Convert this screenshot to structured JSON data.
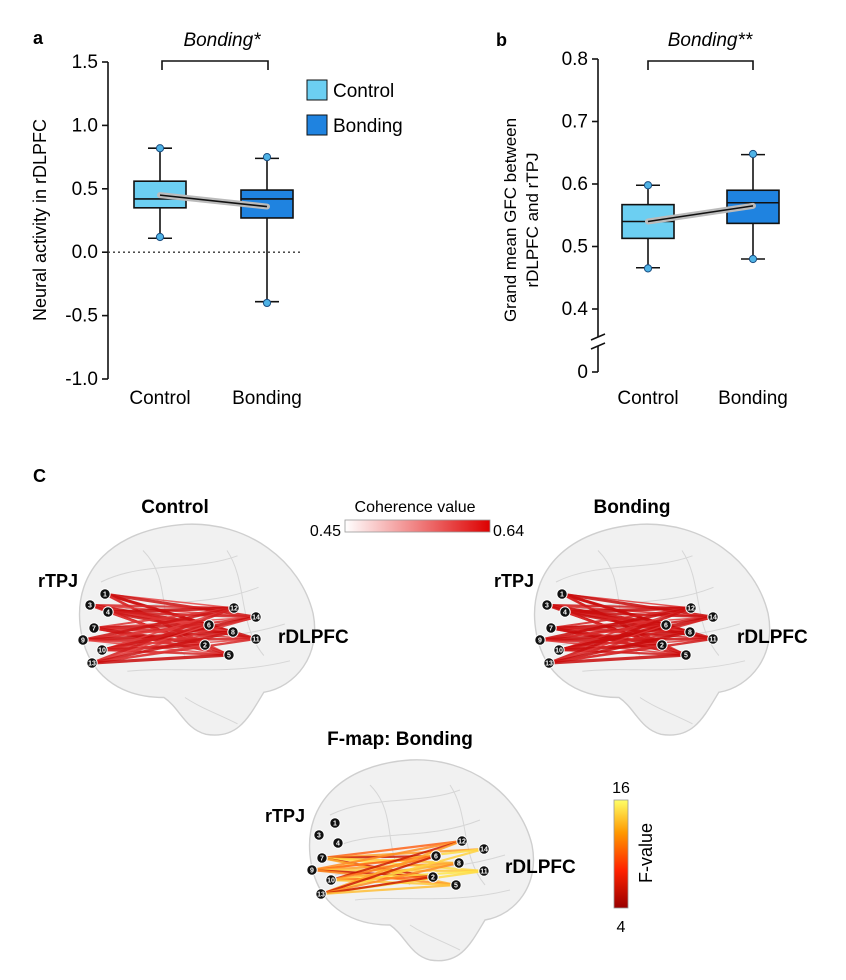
{
  "panel_a": {
    "letter": "a",
    "significance": "Bonding*",
    "legend": [
      "Control",
      "Bonding"
    ],
    "colors": {
      "control": "#6ccff2",
      "bonding": "#1f83e0"
    },
    "chart_data": {
      "type": "box",
      "categories": [
        "Control",
        "Bonding"
      ],
      "ylabel": "Neural activity in rDLPFC",
      "ylim": [
        -1.0,
        1.5
      ],
      "yticks": [
        "-1.0",
        "-0.5",
        "0.0",
        "0.5",
        "1.0",
        "1.5"
      ],
      "reference_line": 0.0,
      "boxes": [
        {
          "name": "Control",
          "min": 0.11,
          "q1": 0.35,
          "median": 0.42,
          "q3": 0.56,
          "max": 0.82,
          "mean": 0.45,
          "outliers": [
            0.82,
            0.12
          ]
        },
        {
          "name": "Bonding",
          "min": -0.39,
          "q1": 0.27,
          "median": 0.42,
          "q3": 0.49,
          "max": 0.74,
          "mean": 0.36,
          "outliers": [
            0.75,
            -0.4
          ]
        }
      ]
    }
  },
  "panel_b": {
    "letter": "b",
    "significance": "Bonding**",
    "chart_data": {
      "type": "box",
      "categories": [
        "Control",
        "Bonding"
      ],
      "ylabel_lines": [
        "Grand mean GFC between",
        "rDLPFC and rTPJ"
      ],
      "ylim": [
        0.35,
        0.8
      ],
      "yticks": [
        "0",
        "0.4",
        "0.5",
        "0.6",
        "0.7",
        "0.8"
      ],
      "axis_break": true,
      "boxes": [
        {
          "name": "Control",
          "min": 0.466,
          "q1": 0.513,
          "median": 0.54,
          "q3": 0.567,
          "max": 0.598,
          "mean": 0.54,
          "outliers": [
            0.598,
            0.465
          ]
        },
        {
          "name": "Bonding",
          "min": 0.48,
          "q1": 0.537,
          "median": 0.57,
          "q3": 0.59,
          "max": 0.647,
          "mean": 0.565,
          "outliers": [
            0.648,
            0.48
          ]
        }
      ]
    }
  },
  "panel_c": {
    "letter": "C",
    "colorbar_title": "Coherence value",
    "colorbar_min": "0.45",
    "colorbar_max": "0.64",
    "brains": [
      {
        "title": "Control",
        "left_label": "rTPJ",
        "right_label": "rDLPFC"
      },
      {
        "title": "Bonding",
        "left_label": "rTPJ",
        "right_label": "rDLPFC"
      }
    ],
    "fmap": {
      "title": "F-map: Bonding",
      "left_label": "rTPJ",
      "right_label": "rDLPFC",
      "colorbar_label": "F-value",
      "colorbar_max": "16",
      "colorbar_min": "4"
    },
    "channels": [
      "1",
      "2",
      "3",
      "4",
      "5",
      "6",
      "7",
      "8",
      "9",
      "10",
      "11",
      "12",
      "13",
      "14"
    ]
  }
}
